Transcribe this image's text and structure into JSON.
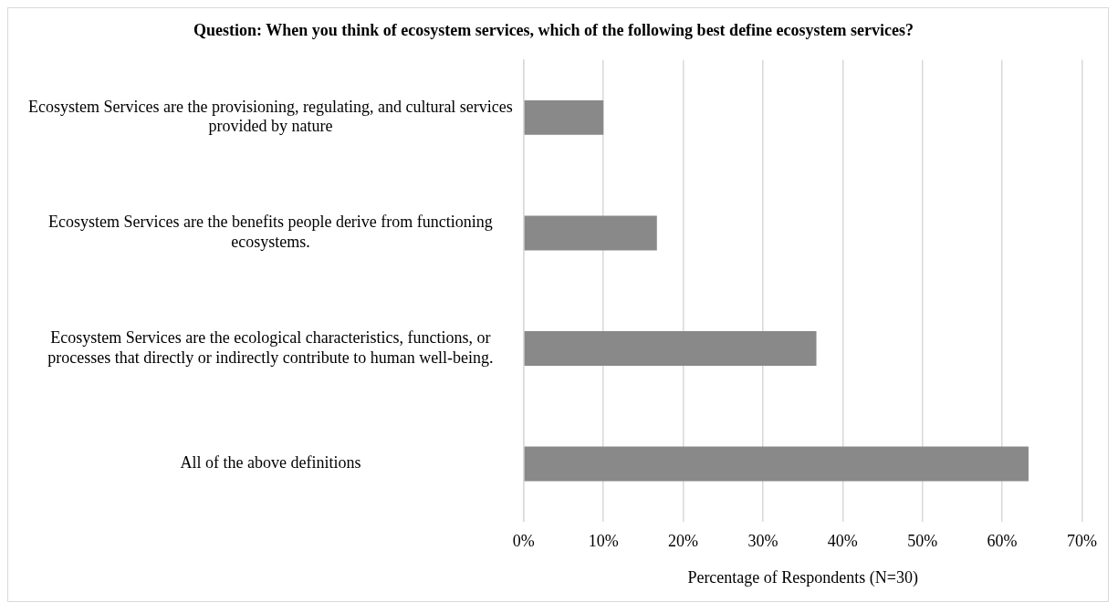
{
  "chart_data": {
    "type": "bar",
    "orientation": "horizontal",
    "title": "Question: When you think of ecosystem services, which of the following best define ecosystem services?",
    "xlabel": "Percentage of Respondents (N=30)",
    "categories": [
      "Ecosystem Services are the provisioning, regulating, and cultural services provided by nature",
      "Ecosystem Services are the benefits people derive from functioning ecosystems.",
      "Ecosystem Services are the ecological characteristics, functions, or processes that directly or indirectly contribute to human well-being.",
      "All of the above definitions"
    ],
    "values": [
      10,
      16.7,
      36.7,
      63.3
    ],
    "color": "#898989",
    "xlim": [
      0,
      70
    ],
    "xticks": [
      {
        "value": 0,
        "label": "0%"
      },
      {
        "value": 10,
        "label": "10%"
      },
      {
        "value": 20,
        "label": "20%"
      },
      {
        "value": 30,
        "label": "30%"
      },
      {
        "value": 40,
        "label": "40%"
      },
      {
        "value": 50,
        "label": "50%"
      },
      {
        "value": 60,
        "label": "60%"
      },
      {
        "value": 70,
        "label": "70%"
      }
    ],
    "grid": "x",
    "legend": false
  }
}
